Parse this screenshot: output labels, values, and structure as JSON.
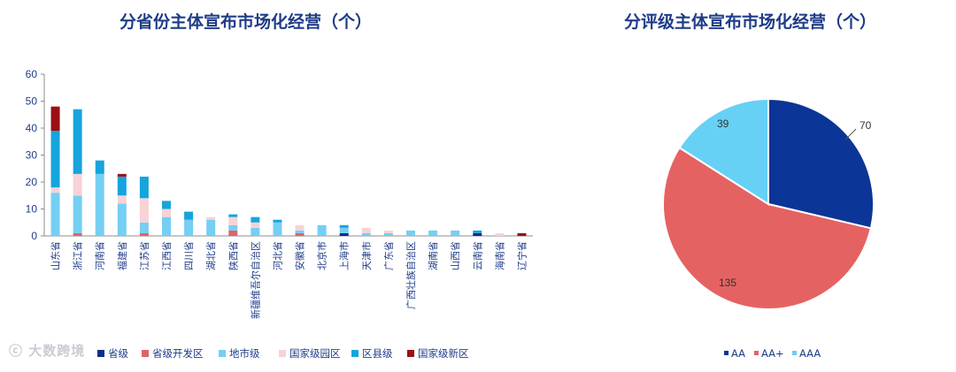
{
  "chart_data": [
    {
      "type": "bar",
      "stacked": true,
      "title": "分省份主体宣布市场化经营（个）",
      "categories": [
        "山东省",
        "浙江省",
        "河南省",
        "福建省",
        "江苏省",
        "江西省",
        "四川省",
        "湖北省",
        "陕西省",
        "新疆维吾尔自治区",
        "河北省",
        "安徽省",
        "北京市",
        "上海市",
        "天津市",
        "广东省",
        "广西壮族自治区",
        "湖南省",
        "山西省",
        "云南省",
        "海南省",
        "辽宁省"
      ],
      "ylim": [
        0,
        60
      ],
      "yticks": [
        0,
        10,
        20,
        30,
        40,
        50,
        60
      ],
      "grid": false,
      "legend_position": "bottom",
      "series": [
        {
          "name": "省级",
          "color": "#0b2f8c",
          "values": [
            0,
            0,
            0,
            0,
            0,
            0,
            0,
            0,
            0,
            0,
            0,
            0,
            0,
            1,
            0,
            0,
            0,
            0,
            0,
            1,
            0,
            0
          ]
        },
        {
          "name": "省级开发区",
          "color": "#e06464",
          "values": [
            0,
            1,
            0,
            0,
            1,
            0,
            0,
            0,
            2,
            0,
            0,
            1,
            0,
            0,
            0,
            0,
            0,
            0,
            0,
            0,
            0,
            0
          ]
        },
        {
          "name": "地市级",
          "color": "#74cff3",
          "values": [
            16,
            14,
            23,
            12,
            4,
            7,
            6,
            6,
            2,
            3,
            5,
            1,
            4,
            2,
            1,
            1,
            2,
            2,
            2,
            0,
            0,
            0
          ]
        },
        {
          "name": "国家级园区",
          "color": "#f7d2d6",
          "values": [
            2,
            8,
            0,
            3,
            9,
            3,
            0,
            1,
            3,
            2,
            0,
            2,
            0,
            0,
            2,
            1,
            0,
            0,
            0,
            0,
            1,
            0
          ]
        },
        {
          "name": "区县级",
          "color": "#16a4dc",
          "values": [
            21,
            24,
            5,
            7,
            8,
            3,
            3,
            0,
            1,
            2,
            1,
            0,
            0,
            1,
            0,
            0,
            0,
            0,
            0,
            1,
            0,
            0
          ]
        },
        {
          "name": "国家级新区",
          "color": "#9a0f14",
          "values": [
            9,
            0,
            0,
            1,
            0,
            0,
            0,
            0,
            0,
            0,
            0,
            0,
            0,
            0,
            0,
            0,
            0,
            0,
            0,
            0,
            0,
            1
          ]
        }
      ]
    },
    {
      "type": "pie",
      "title": "分评级主体宣布市场化经营（个）",
      "legend_position": "bottom",
      "series": [
        {
          "name": "AA",
          "value": 70,
          "color": "#0b3596"
        },
        {
          "name": "AA+",
          "value": 135,
          "color": "#e56262"
        },
        {
          "name": "AAA",
          "value": 39,
          "color": "#66d0f5"
        }
      ]
    }
  ],
  "watermark": "大数跨境"
}
